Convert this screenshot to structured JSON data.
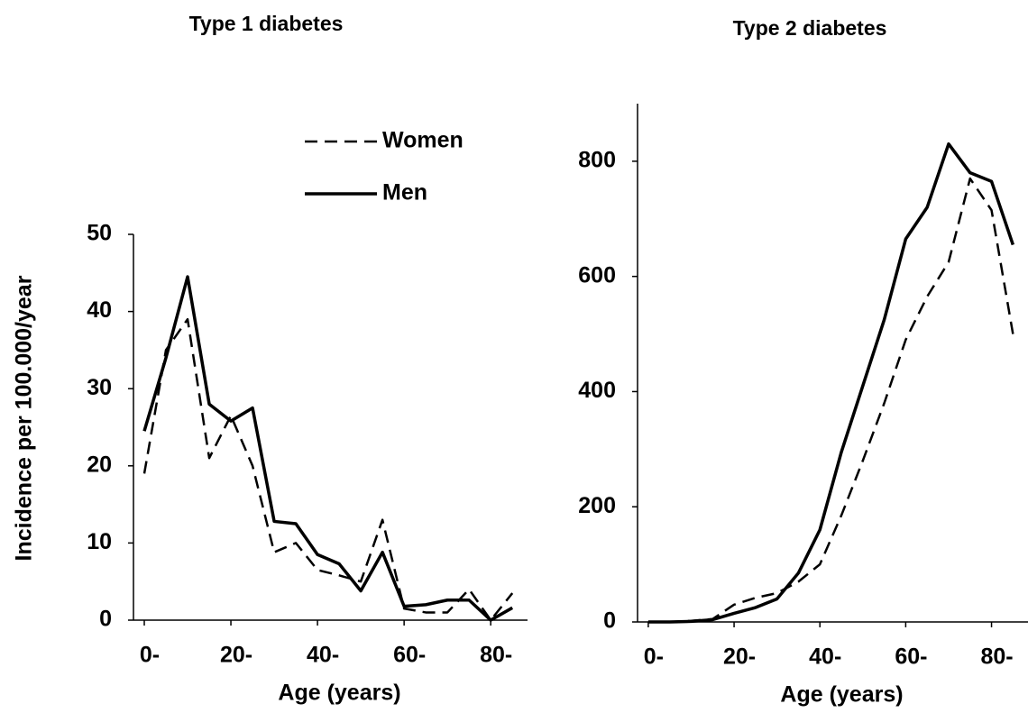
{
  "chart_data": [
    {
      "type": "line",
      "title": "Type 1 diabetes",
      "x_label": "Age (years)",
      "y_label": "Incidence per 100.000/year",
      "x": [
        0,
        5,
        10,
        15,
        20,
        25,
        30,
        35,
        40,
        45,
        50,
        55,
        60,
        65,
        70,
        75,
        80,
        85
      ],
      "series": [
        {
          "name": "Women",
          "color": "#000000",
          "dash": true,
          "values": [
            19,
            35,
            39,
            21,
            26.5,
            20,
            8.8,
            10,
            6.5,
            5.8,
            5,
            13,
            1.5,
            1,
            1,
            4,
            0,
            3.5
          ]
        },
        {
          "name": "Men",
          "color": "#000000",
          "dash": false,
          "values": [
            24.5,
            34,
            44.5,
            28,
            25.8,
            27.5,
            12.8,
            12.5,
            8.5,
            7.3,
            3.8,
            8.8,
            1.8,
            2,
            2.6,
            2.6,
            0,
            1.6
          ]
        }
      ],
      "xlim": [
        -2.5,
        88.5
      ],
      "xticks": [
        {
          "value": 0,
          "label": "0-"
        },
        {
          "value": 20,
          "label": "20-"
        },
        {
          "value": 40,
          "label": "40-"
        },
        {
          "value": 60,
          "label": "60-"
        },
        {
          "value": 80,
          "label": "80-"
        }
      ],
      "ylim": [
        0,
        50
      ],
      "yticks": [
        0,
        10,
        20,
        30,
        40,
        50
      ],
      "legend": "top-right"
    },
    {
      "type": "line",
      "title": "Type 2 diabetes",
      "x_label": "Age (years)",
      "x": [
        0,
        5,
        10,
        15,
        20,
        25,
        30,
        35,
        40,
        45,
        50,
        55,
        60,
        65,
        70,
        75,
        80,
        85
      ],
      "series": [
        {
          "color": "#000000",
          "dash": true,
          "values": [
            0,
            0,
            2,
            5,
            30,
            42,
            50,
            70,
            100,
            185,
            280,
            380,
            490,
            565,
            625,
            770,
            715,
            500
          ]
        },
        {
          "color": "#000000",
          "dash": false,
          "values": [
            0,
            0,
            1,
            4,
            15,
            25,
            40,
            85,
            160,
            295,
            410,
            525,
            665,
            720,
            830,
            780,
            765,
            655
          ]
        }
      ],
      "xlim": [
        -2.5,
        88.5
      ],
      "xticks": [
        {
          "value": 0,
          "label": "0-"
        },
        {
          "value": 20,
          "label": "20-"
        },
        {
          "value": 40,
          "label": "40-"
        },
        {
          "value": 60,
          "label": "60-"
        },
        {
          "value": 80,
          "label": "80-"
        }
      ],
      "ylim": [
        0,
        900
      ],
      "yticks": [
        0,
        200,
        400,
        600,
        800
      ]
    }
  ]
}
